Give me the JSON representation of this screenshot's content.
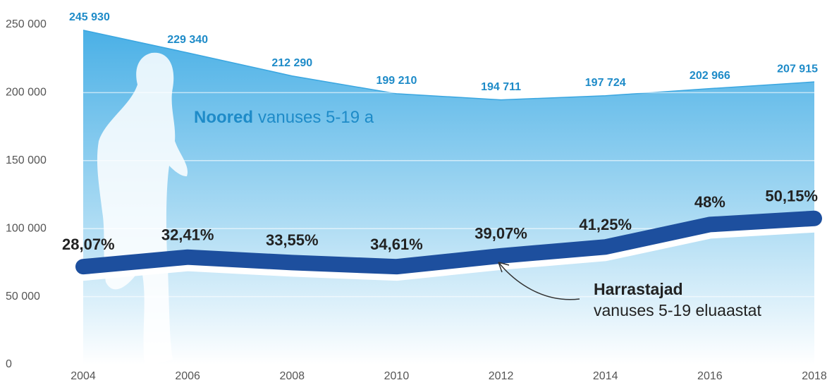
{
  "chart_data": {
    "type": "area-line",
    "x": [
      2004,
      2006,
      2008,
      2010,
      2012,
      2014,
      2016,
      2018
    ],
    "xlim": [
      2004,
      2018
    ],
    "xticks": [
      2004,
      2006,
      2008,
      2010,
      2012,
      2014,
      2016,
      2018
    ],
    "ylim": [
      0,
      250000
    ],
    "yticks": [
      0,
      {
        "value": 50000,
        "label": "50 000"
      },
      {
        "value": 100000,
        "label": "100 000"
      },
      {
        "value": 150000,
        "label": "150 000"
      },
      {
        "value": 200000,
        "label": "200 000"
      },
      {
        "value": 250000,
        "label": "250 000"
      }
    ],
    "grid": true,
    "series": [
      {
        "name": "Noored",
        "color": "#3aa6e0",
        "values": [
          245930,
          229340,
          212290,
          199210,
          194711,
          197724,
          202966,
          207915
        ],
        "value_labels": [
          "245 930",
          "229 340",
          "212 290",
          "199 210",
          "194 711",
          "197 724",
          "202 966",
          "207 915"
        ]
      },
      {
        "name": "Harrastajad",
        "color": "#1d4f9e",
        "values": [
          72000,
          79000,
          75000,
          72000,
          80000,
          86500,
          103000,
          107500
        ]
      }
    ],
    "shares": {
      "values": [
        28.07,
        32.41,
        33.55,
        34.61,
        39.07,
        41.25,
        48,
        50.15
      ],
      "value_labels": [
        "28,07%",
        "32,41%",
        "33,55%",
        "34,61%",
        "39,07%",
        "41,25%",
        "48%",
        "50,15%"
      ]
    },
    "annotations": {
      "youth_bold": "Noored",
      "youth_rest": "vanuses 5-19 a",
      "participants_bold": "Harrastajad",
      "participants_rest": "vanuses 5-19 eluaastat"
    }
  }
}
